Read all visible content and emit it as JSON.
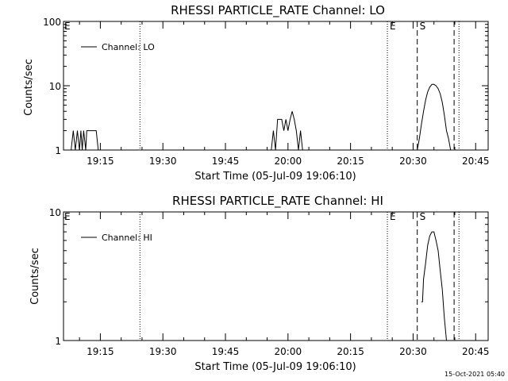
{
  "footer": {
    "timestamp": "15-Oct-2021 05:40"
  },
  "chart_data": [
    {
      "type": "line",
      "title": "RHESSI PARTICLE_RATE Channel: LO",
      "xlabel": "Start Time (05-Jul-09 19:06:10)",
      "ylabel": "Counts/sec",
      "yscale": "log",
      "ylim": [
        1,
        100
      ],
      "xlim": [
        "19:06:10",
        "20:48:00"
      ],
      "yticks": [
        {
          "value": 1,
          "label": "1"
        },
        {
          "value": 10,
          "label": "10"
        },
        {
          "value": 100,
          "label": "100"
        }
      ],
      "xticks": [
        {
          "value": "19:15",
          "label": "19:15"
        },
        {
          "value": "19:30",
          "label": "19:30"
        },
        {
          "value": "19:45",
          "label": "19:45"
        },
        {
          "value": "20:00",
          "label": "20:00"
        },
        {
          "value": "20:15",
          "label": "20:15"
        },
        {
          "value": "20:30",
          "label": "20:30"
        },
        {
          "value": "20:45",
          "label": "20:45"
        }
      ],
      "legend": {
        "placement": "top-left"
      },
      "series": [
        {
          "name": "Channel: LO",
          "x": [
            "19:08:00",
            "19:08:30",
            "19:09:00",
            "19:09:30",
            "19:10:00",
            "19:10:20",
            "19:10:40",
            "19:11:00",
            "19:11:30",
            "19:11:45",
            "19:12:00",
            "19:12:30",
            "19:13:00",
            "19:13:30",
            "19:14:00",
            "19:14:30",
            "19:56:00",
            "19:56:30",
            "19:57:00",
            "19:57:30",
            "19:58:00",
            "19:58:30",
            "19:59:00",
            "19:59:30",
            "20:00:00",
            "20:00:30",
            "20:01:00",
            "20:01:30",
            "20:02:00",
            "20:02:30",
            "20:03:00",
            "20:03:30",
            "20:04:00",
            "20:31:00",
            "20:31:30",
            "20:32:00",
            "20:32:30",
            "20:33:00",
            "20:33:30",
            "20:34:00",
            "20:34:30",
            "20:35:00",
            "20:35:30",
            "20:36:00",
            "20:36:30",
            "20:37:00",
            "20:37:30",
            "20:38:00",
            "20:38:30",
            "20:39:00",
            "20:39:30"
          ],
          "y": [
            1,
            2,
            1,
            2,
            1,
            2,
            1,
            2,
            1,
            2,
            2,
            2,
            2,
            2,
            2,
            1,
            1,
            2,
            1,
            3,
            3,
            3,
            2,
            3,
            2,
            3,
            4,
            3,
            2,
            1,
            2,
            1,
            1,
            1,
            1.5,
            2.5,
            4,
            6,
            8,
            9.5,
            10.5,
            10.5,
            10,
            9,
            7.5,
            5.5,
            3.5,
            2,
            1.5,
            1,
            1
          ]
        }
      ],
      "vlines": [
        {
          "x": "19:24:30",
          "style": "dotted",
          "label": ""
        },
        {
          "x": "20:23:50",
          "style": "dotted",
          "label": "E"
        },
        {
          "x": "20:31:00",
          "style": "dashed",
          "label": "S"
        },
        {
          "x": "20:39:50",
          "style": "dashed",
          "label": ""
        },
        {
          "x": "20:41:00",
          "style": "dotted",
          "label": ""
        }
      ],
      "corner_label": "E"
    },
    {
      "type": "line",
      "title": "RHESSI PARTICLE_RATE Channel: HI",
      "xlabel": "Start Time (05-Jul-09 19:06:10)",
      "ylabel": "Counts/sec",
      "yscale": "log",
      "ylim": [
        1,
        10
      ],
      "xlim": [
        "19:06:10",
        "20:48:00"
      ],
      "yticks": [
        {
          "value": 1,
          "label": "1"
        },
        {
          "value": 10,
          "label": "10"
        }
      ],
      "xticks": [
        {
          "value": "19:15",
          "label": "19:15"
        },
        {
          "value": "19:30",
          "label": "19:30"
        },
        {
          "value": "19:45",
          "label": "19:45"
        },
        {
          "value": "20:00",
          "label": "20:00"
        },
        {
          "value": "20:15",
          "label": "20:15"
        },
        {
          "value": "20:30",
          "label": "20:30"
        },
        {
          "value": "20:45",
          "label": "20:45"
        }
      ],
      "legend": {
        "placement": "top-left"
      },
      "series": [
        {
          "name": "Channel: HI",
          "x": [
            "20:32:00",
            "20:32:15",
            "20:32:30",
            "20:33:00",
            "20:33:30",
            "20:34:00",
            "20:34:30",
            "20:35:00",
            "20:35:30",
            "20:36:00",
            "20:36:30",
            "20:37:00",
            "20:37:30",
            "20:38:00"
          ],
          "y": [
            2,
            2,
            3,
            4,
            5.5,
            6.5,
            7,
            7,
            6,
            5,
            3.5,
            2.5,
            1.5,
            1
          ]
        }
      ],
      "vlines": [
        {
          "x": "19:24:30",
          "style": "dotted",
          "label": ""
        },
        {
          "x": "20:23:50",
          "style": "dotted",
          "label": "E"
        },
        {
          "x": "20:31:00",
          "style": "dashed",
          "label": "S"
        },
        {
          "x": "20:39:50",
          "style": "dashed",
          "label": ""
        },
        {
          "x": "20:41:00",
          "style": "dotted",
          "label": ""
        }
      ],
      "corner_label": "E"
    }
  ]
}
